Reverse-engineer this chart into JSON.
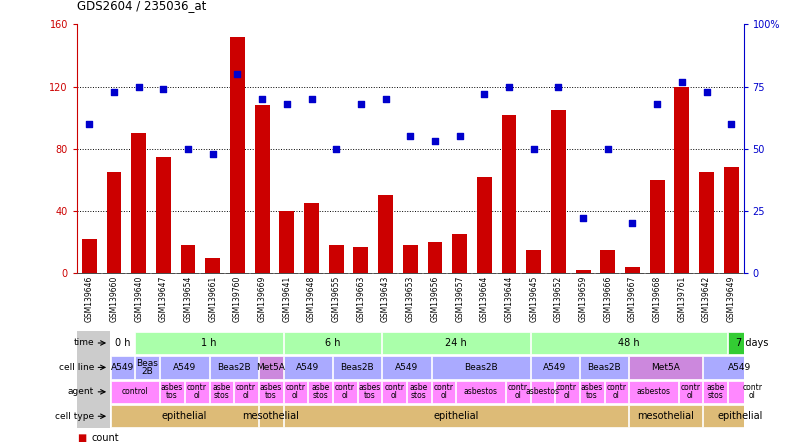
{
  "title": "GDS2604 / 235036_at",
  "samples": [
    "GSM139646",
    "GSM139660",
    "GSM139640",
    "GSM139647",
    "GSM139654",
    "GSM139661",
    "GSM139760",
    "GSM139669",
    "GSM139641",
    "GSM139648",
    "GSM139655",
    "GSM139663",
    "GSM139643",
    "GSM139653",
    "GSM139656",
    "GSM139657",
    "GSM139664",
    "GSM139644",
    "GSM139645",
    "GSM139652",
    "GSM139659",
    "GSM139666",
    "GSM139667",
    "GSM139668",
    "GSM139761",
    "GSM139642",
    "GSM139649"
  ],
  "counts": [
    22,
    65,
    90,
    75,
    18,
    10,
    152,
    108,
    40,
    45,
    18,
    17,
    50,
    18,
    20,
    25,
    62,
    102,
    15,
    105,
    2,
    15,
    4,
    60,
    120,
    65,
    68
  ],
  "percentiles": [
    60,
    73,
    75,
    74,
    50,
    48,
    80,
    70,
    68,
    70,
    50,
    68,
    70,
    55,
    53,
    55,
    72,
    75,
    50,
    75,
    22,
    50,
    20,
    68,
    77,
    73,
    60
  ],
  "ylim_left": [
    0,
    160
  ],
  "ylim_right": [
    0,
    100
  ],
  "yticks_left": [
    0,
    40,
    80,
    120,
    160
  ],
  "yticks_left_labels": [
    "0",
    "40",
    "80",
    "120",
    "160"
  ],
  "yticks_right": [
    0,
    25,
    50,
    75,
    100
  ],
  "yticks_right_labels": [
    "0",
    "25",
    "50",
    "75",
    "100%"
  ],
  "bar_color": "#cc0000",
  "dot_color": "#0000cc",
  "bg_color": "#ffffff",
  "time_segments": [
    {
      "text": "0 h",
      "start": 0,
      "end": 1,
      "color": "#ffffff"
    },
    {
      "text": "1 h",
      "start": 1,
      "end": 7,
      "color": "#aaffaa"
    },
    {
      "text": "6 h",
      "start": 7,
      "end": 11,
      "color": "#aaffaa"
    },
    {
      "text": "24 h",
      "start": 11,
      "end": 17,
      "color": "#aaffaa"
    },
    {
      "text": "48 h",
      "start": 17,
      "end": 25,
      "color": "#aaffaa"
    },
    {
      "text": "7 days",
      "start": 25,
      "end": 27,
      "color": "#33cc33"
    }
  ],
  "cell_line_segments": [
    {
      "text": "A549",
      "start": 0,
      "end": 1,
      "color": "#aaaaff"
    },
    {
      "text": "Beas\n2B",
      "start": 1,
      "end": 2,
      "color": "#aaaaff"
    },
    {
      "text": "A549",
      "start": 2,
      "end": 4,
      "color": "#aaaaff"
    },
    {
      "text": "Beas2B",
      "start": 4,
      "end": 6,
      "color": "#aaaaff"
    },
    {
      "text": "Met5A",
      "start": 6,
      "end": 7,
      "color": "#cc88dd"
    },
    {
      "text": "A549",
      "start": 7,
      "end": 9,
      "color": "#aaaaff"
    },
    {
      "text": "Beas2B",
      "start": 9,
      "end": 11,
      "color": "#aaaaff"
    },
    {
      "text": "A549",
      "start": 11,
      "end": 13,
      "color": "#aaaaff"
    },
    {
      "text": "Beas2B",
      "start": 13,
      "end": 17,
      "color": "#aaaaff"
    },
    {
      "text": "A549",
      "start": 17,
      "end": 19,
      "color": "#aaaaff"
    },
    {
      "text": "Beas2B",
      "start": 19,
      "end": 21,
      "color": "#aaaaff"
    },
    {
      "text": "Met5A",
      "start": 21,
      "end": 24,
      "color": "#cc88dd"
    },
    {
      "text": "A549",
      "start": 24,
      "end": 27,
      "color": "#aaaaff"
    }
  ],
  "agent_segments": [
    {
      "text": "control",
      "start": 0,
      "end": 2,
      "color": "#ff88ff"
    },
    {
      "text": "asbes\ntos",
      "start": 2,
      "end": 3,
      "color": "#ff88ff"
    },
    {
      "text": "contr\nol",
      "start": 3,
      "end": 4,
      "color": "#ff88ff"
    },
    {
      "text": "asbe\nstos",
      "start": 4,
      "end": 5,
      "color": "#ff88ff"
    },
    {
      "text": "contr\nol",
      "start": 5,
      "end": 6,
      "color": "#ff88ff"
    },
    {
      "text": "asbes\ntos",
      "start": 6,
      "end": 7,
      "color": "#ff88ff"
    },
    {
      "text": "contr\nol",
      "start": 7,
      "end": 8,
      "color": "#ff88ff"
    },
    {
      "text": "asbe\nstos",
      "start": 8,
      "end": 9,
      "color": "#ff88ff"
    },
    {
      "text": "contr\nol",
      "start": 9,
      "end": 10,
      "color": "#ff88ff"
    },
    {
      "text": "asbes\ntos",
      "start": 10,
      "end": 11,
      "color": "#ff88ff"
    },
    {
      "text": "contr\nol",
      "start": 11,
      "end": 12,
      "color": "#ff88ff"
    },
    {
      "text": "asbe\nstos",
      "start": 12,
      "end": 13,
      "color": "#ff88ff"
    },
    {
      "text": "contr\nol",
      "start": 13,
      "end": 14,
      "color": "#ff88ff"
    },
    {
      "text": "asbestos",
      "start": 14,
      "end": 16,
      "color": "#ff88ff"
    },
    {
      "text": "contr\nol",
      "start": 16,
      "end": 17,
      "color": "#ff88ff"
    },
    {
      "text": "asbestos",
      "start": 17,
      "end": 18,
      "color": "#ff88ff"
    },
    {
      "text": "contr\nol",
      "start": 18,
      "end": 19,
      "color": "#ff88ff"
    },
    {
      "text": "asbes\ntos",
      "start": 19,
      "end": 20,
      "color": "#ff88ff"
    },
    {
      "text": "contr\nol",
      "start": 20,
      "end": 21,
      "color": "#ff88ff"
    },
    {
      "text": "asbestos",
      "start": 21,
      "end": 23,
      "color": "#ff88ff"
    },
    {
      "text": "contr\nol",
      "start": 23,
      "end": 24,
      "color": "#ff88ff"
    },
    {
      "text": "asbe\nstos",
      "start": 24,
      "end": 25,
      "color": "#ff88ff"
    },
    {
      "text": "contr\nol",
      "start": 25,
      "end": 27,
      "color": "#ff88ff"
    }
  ],
  "cell_type_segments": [
    {
      "text": "epithelial",
      "start": 0,
      "end": 6,
      "color": "#ddbb77"
    },
    {
      "text": "mesothelial",
      "start": 6,
      "end": 7,
      "color": "#ddbb77"
    },
    {
      "text": "epithelial",
      "start": 7,
      "end": 21,
      "color": "#ddbb77"
    },
    {
      "text": "mesothelial",
      "start": 21,
      "end": 24,
      "color": "#ddbb77"
    },
    {
      "text": "epithelial",
      "start": 24,
      "end": 27,
      "color": "#ddbb77"
    }
  ],
  "row_labels": [
    "time",
    "cell line",
    "agent",
    "cell type"
  ]
}
